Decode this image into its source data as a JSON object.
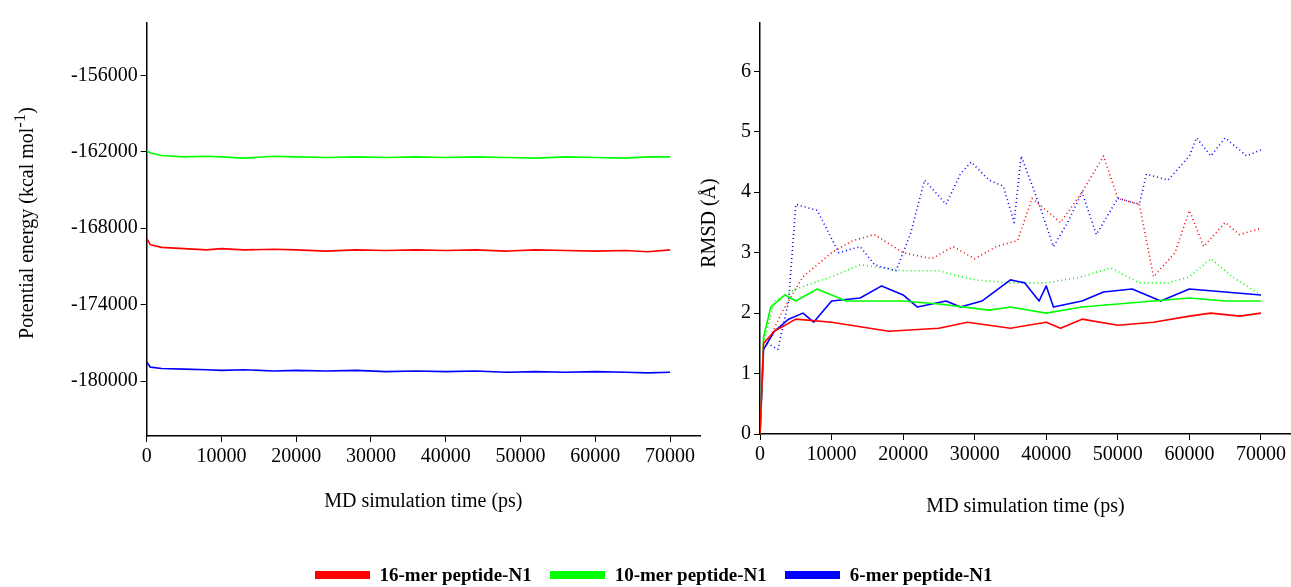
{
  "chart_data": [
    {
      "type": "line",
      "xlabel": "MD simulation time (ps)",
      "ylabel": "Potential energy (kcal mol$^{-1}$)",
      "xlim": [
        0,
        74000
      ],
      "ylim": [
        -184300,
        -151900
      ],
      "xticks": [
        0,
        10000,
        20000,
        30000,
        40000,
        50000,
        60000,
        70000
      ],
      "yticks": [
        -180000,
        -174000,
        -168000,
        -162000,
        -156000
      ],
      "grid": false,
      "legend": "bottom",
      "marker": "none",
      "x": [
        0,
        500,
        2000,
        5000,
        8000,
        10000,
        13000,
        17000,
        20000,
        24000,
        28000,
        32000,
        36000,
        40000,
        44000,
        48000,
        52000,
        56000,
        60000,
        64000,
        67000,
        70000
      ],
      "series": [
        {
          "name": "16-mer peptide-N1",
          "color": "#ff0000",
          "values": [
            -168800,
            -169300,
            -169500,
            -169600,
            -169700,
            -169600,
            -169700,
            -169650,
            -169700,
            -169800,
            -169700,
            -169750,
            -169700,
            -169750,
            -169700,
            -169800,
            -169700,
            -169750,
            -169800,
            -169750,
            -169850,
            -169700
          ]
        },
        {
          "name": "10-mer peptide-N1",
          "color": "#00ff00",
          "values": [
            -161900,
            -162100,
            -162300,
            -162400,
            -162350,
            -162400,
            -162500,
            -162350,
            -162400,
            -162450,
            -162400,
            -162450,
            -162400,
            -162450,
            -162400,
            -162450,
            -162500,
            -162400,
            -162450,
            -162500,
            -162400,
            -162400
          ]
        },
        {
          "name": "6-mer peptide-N1",
          "color": "#0000ff",
          "values": [
            -178500,
            -178900,
            -179000,
            -179050,
            -179100,
            -179150,
            -179100,
            -179200,
            -179150,
            -179200,
            -179150,
            -179250,
            -179200,
            -179250,
            -179200,
            -179300,
            -179250,
            -179300,
            -179250,
            -179300,
            -179350,
            -179300
          ]
        }
      ]
    },
    {
      "type": "line",
      "xlabel": "MD simulation time (ps)",
      "ylabel": "RMSD (Å)",
      "xlim": [
        0,
        74200
      ],
      "ylim": [
        0,
        6.8
      ],
      "xticks": [
        0,
        10000,
        20000,
        30000,
        40000,
        50000,
        60000,
        70000
      ],
      "yticks": [
        0,
        1,
        2,
        3,
        4,
        5,
        6
      ],
      "grid": false,
      "legend": "bottom",
      "marker": "none",
      "series": [
        {
          "name": "16-mer peptide-N1",
          "color": "#ff0000",
          "x": [
            0,
            500,
            2000,
            5000,
            10000,
            18000,
            25000,
            29000,
            35000,
            40000,
            42000,
            45000,
            50000,
            55000,
            60000,
            63000,
            67000,
            70000
          ],
          "values": [
            0,
            1.5,
            1.7,
            1.9,
            1.85,
            1.7,
            1.75,
            1.85,
            1.75,
            1.85,
            1.75,
            1.9,
            1.8,
            1.85,
            1.95,
            2.0,
            1.95,
            2.0
          ]
        },
        {
          "name": "10-mer peptide-N1",
          "color": "#00ff00",
          "x": [
            0,
            500,
            1500,
            3500,
            5000,
            8000,
            12000,
            20000,
            25000,
            32000,
            35000,
            40000,
            45000,
            50000,
            55000,
            60000,
            65000,
            70000
          ],
          "values": [
            0,
            1.6,
            2.1,
            2.3,
            2.2,
            2.4,
            2.2,
            2.2,
            2.15,
            2.05,
            2.1,
            2.0,
            2.1,
            2.15,
            2.2,
            2.25,
            2.2,
            2.2
          ]
        },
        {
          "name": "6-mer peptide-N1",
          "color": "#0000ff",
          "x": [
            0,
            500,
            2000,
            4000,
            6000,
            7500,
            10000,
            14000,
            17000,
            20000,
            22000,
            26000,
            28000,
            31000,
            35000,
            37000,
            39000,
            40000,
            41000,
            45000,
            48000,
            52000,
            56000,
            60000,
            65000,
            70000
          ],
          "values": [
            0,
            1.4,
            1.7,
            1.9,
            2.0,
            1.85,
            2.2,
            2.25,
            2.45,
            2.3,
            2.1,
            2.2,
            2.1,
            2.2,
            2.55,
            2.5,
            2.2,
            2.45,
            2.1,
            2.2,
            2.35,
            2.4,
            2.2,
            2.4,
            2.35,
            2.3
          ]
        },
        {
          "color": "#0000ff",
          "line_style": "dotted",
          "x": [
            1000,
            2500,
            4000,
            5000,
            8000,
            11000,
            14000,
            16000,
            19000,
            21000,
            23000,
            26000,
            28000,
            29500,
            32000,
            34000,
            35500,
            36500,
            39000,
            41000,
            43000,
            45000,
            47000,
            50000,
            53000,
            54000,
            57000,
            60000,
            61000,
            63000,
            65000,
            68000,
            70000
          ],
          "values": [
            1.5,
            1.4,
            2.2,
            3.8,
            3.7,
            3.0,
            3.1,
            2.8,
            2.7,
            3.3,
            4.2,
            3.8,
            4.3,
            4.5,
            4.2,
            4.1,
            3.5,
            4.6,
            3.8,
            3.1,
            3.5,
            4.0,
            3.3,
            3.9,
            3.8,
            4.3,
            4.2,
            4.6,
            4.9,
            4.6,
            4.9,
            4.6,
            4.7
          ]
        },
        {
          "color": "#ff0000",
          "line_style": "dotted",
          "x": [
            1000,
            3000,
            6000,
            10000,
            13000,
            16000,
            20000,
            24000,
            27000,
            30000,
            33000,
            36000,
            38000,
            42000,
            45000,
            48000,
            50000,
            53000,
            55000,
            58000,
            60000,
            62000,
            65000,
            67000,
            70000
          ],
          "values": [
            1.5,
            2.0,
            2.6,
            3.0,
            3.2,
            3.3,
            3.0,
            2.9,
            3.1,
            2.9,
            3.1,
            3.2,
            3.9,
            3.5,
            4.0,
            4.6,
            3.9,
            3.8,
            2.6,
            3.0,
            3.7,
            3.1,
            3.5,
            3.3,
            3.4
          ]
        },
        {
          "color": "#00ff00",
          "line_style": "dotted",
          "x": [
            500,
            2000,
            5000,
            10000,
            14000,
            20000,
            25000,
            30000,
            35000,
            40000,
            45000,
            49000,
            53000,
            57000,
            60000,
            63000,
            66000,
            70000
          ],
          "values": [
            1.5,
            2.2,
            2.4,
            2.6,
            2.8,
            2.7,
            2.7,
            2.55,
            2.5,
            2.5,
            2.6,
            2.75,
            2.5,
            2.5,
            2.6,
            2.9,
            2.6,
            2.3
          ]
        }
      ]
    }
  ]
}
